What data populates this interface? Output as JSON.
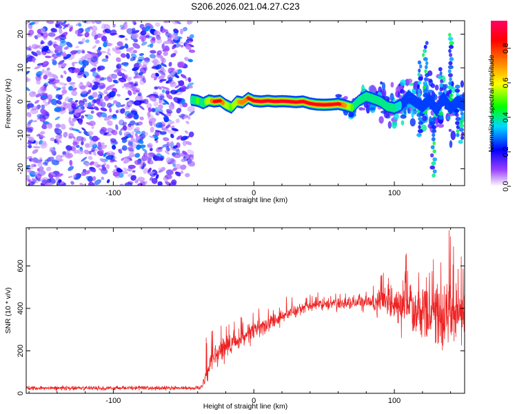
{
  "title": "S206.2026.021.04.27.C23",
  "chart_data": [
    {
      "type": "heatmap",
      "name": "spectrogram",
      "xlabel": "Height of straight line (km)",
      "ylabel": "Frequency (Hz)",
      "xlim": [
        -162,
        150
      ],
      "ylim": [
        -25,
        24
      ],
      "x_ticks": [
        -100,
        0,
        100
      ],
      "y_ticks": [
        -20,
        -10,
        0,
        10,
        20
      ],
      "colorbar": {
        "label": "Normalized spectral amplitude",
        "range": [
          0.0,
          0.96
        ],
        "ticks": [
          0.0,
          0.2,
          0.4,
          0.6,
          0.8
        ],
        "tick_labels": [
          "0.0",
          "0.2",
          "0.4",
          "0.6",
          "0.8"
        ],
        "colors": [
          "#ffffff",
          "#9a40ff",
          "#0000ff",
          "#00d8ff",
          "#00ff00",
          "#ffff00",
          "#ff8800",
          "#ff0000",
          "#ff0066"
        ]
      },
      "noise_region": {
        "x": [
          -162,
          -44
        ],
        "amplitude": [
          0.05,
          0.3
        ]
      },
      "ridge_line": {
        "x": [
          -44,
          -40,
          -36,
          -32,
          -28,
          -24,
          -20,
          -16,
          -12,
          -8,
          -4,
          0,
          5,
          10,
          15,
          20,
          25,
          30,
          35,
          40,
          45,
          50,
          55,
          60,
          65,
          70,
          75,
          80,
          85,
          90,
          95,
          100,
          105,
          110,
          115,
          120,
          125,
          130,
          135,
          140,
          145,
          150
        ],
        "freq": [
          0.5,
          0.2,
          -0.5,
          0.3,
          0.0,
          0.2,
          -1.0,
          -1.8,
          0.0,
          -0.3,
          1.0,
          0.2,
          0.0,
          0.2,
          0.0,
          0.1,
          0.0,
          -0.2,
          0.0,
          -0.6,
          -0.9,
          -1.0,
          -0.9,
          -0.7,
          -1.2,
          -1.8,
          0.3,
          1.5,
          0.8,
          0.0,
          -1.5,
          -2.0,
          -1.0,
          1.5,
          0.0,
          -1.5,
          0.5,
          -2.5,
          1.0,
          -2.0,
          0.0,
          -1.0
        ],
        "amplitude": [
          0.45,
          0.5,
          0.45,
          0.6,
          0.85,
          0.85,
          0.6,
          0.5,
          0.65,
          0.75,
          0.85,
          0.9,
          0.95,
          0.95,
          0.92,
          0.95,
          0.9,
          0.95,
          0.9,
          0.92,
          0.95,
          0.95,
          0.95,
          0.9,
          0.7,
          0.5,
          0.45,
          0.45,
          0.4,
          0.4,
          0.4,
          0.4,
          0.35,
          0.35,
          0.3,
          0.3,
          0.35,
          0.3,
          0.3,
          0.3,
          0.3,
          0.3
        ]
      }
    },
    {
      "type": "line",
      "name": "snr",
      "xlabel": "Height of straight line (km)",
      "ylabel": "SNR (10 * v/v)",
      "xlim": [
        -162,
        150
      ],
      "ylim": [
        0,
        780
      ],
      "x_ticks": [
        -100,
        0,
        100
      ],
      "y_ticks": [
        0,
        200,
        400,
        600
      ],
      "color": "#ee2222",
      "envelope": {
        "x": [
          -162,
          -38,
          -34,
          -30,
          -20,
          -10,
          0,
          10,
          20,
          30,
          40,
          50,
          60,
          70,
          80,
          90,
          100,
          110,
          120,
          130,
          140,
          150
        ],
        "mean": [
          25,
          25,
          70,
          170,
          220,
          250,
          290,
          330,
          360,
          390,
          410,
          420,
          420,
          425,
          430,
          430,
          430,
          410,
          390,
          380,
          380,
          380
        ],
        "noise": [
          9,
          9,
          35,
          50,
          55,
          50,
          45,
          40,
          35,
          30,
          28,
          25,
          25,
          28,
          35,
          55,
          75,
          110,
          150,
          160,
          150,
          140
        ],
        "peak": [
          35,
          35,
          310,
          300,
          330,
          360,
          400,
          420,
          450,
          470,
          470,
          480,
          480,
          480,
          500,
          560,
          620,
          690,
          720,
          750,
          780,
          620
        ]
      }
    }
  ]
}
